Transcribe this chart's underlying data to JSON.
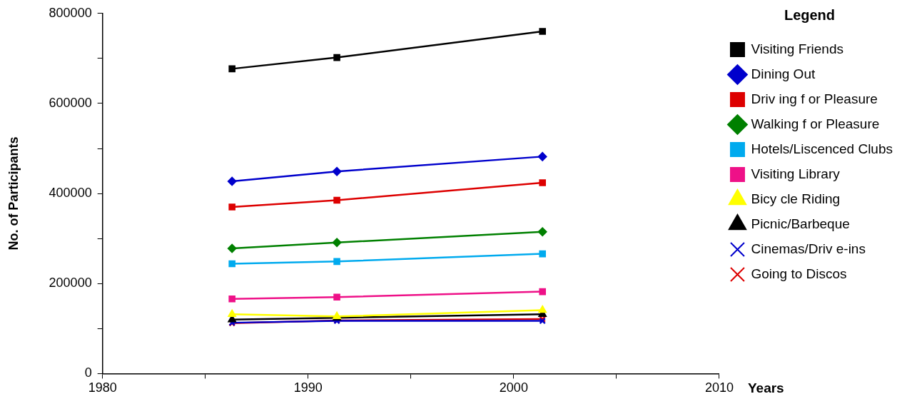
{
  "chart_data": {
    "type": "line",
    "xlabel": "Years",
    "ylabel": "No. of Participants",
    "legend_title": "Legend",
    "legend": "right",
    "grid": false,
    "x": [
      1986.3,
      1991.4,
      2001.4
    ],
    "xlim": [
      1980,
      2010
    ],
    "xticks": [
      1980,
      {
        "value": 1985,
        "label": null
      },
      1990,
      {
        "value": 1995,
        "label": null
      },
      2000,
      {
        "value": 2005,
        "label": null
      },
      2010
    ],
    "ylim": [
      0,
      800000
    ],
    "yticks": [
      0,
      {
        "value": 100000,
        "label": null
      },
      200000,
      {
        "value": 300000,
        "label": null
      },
      400000,
      {
        "value": 500000,
        "label": null
      },
      600000,
      {
        "value": 700000,
        "label": null
      },
      800000
    ],
    "series": [
      {
        "name": "Visiting Friends",
        "color": "#000000",
        "marker": "square",
        "values": [
          677000,
          702000,
          760000
        ]
      },
      {
        "name": "Dining Out",
        "color": "#0000cc",
        "marker": "diamond",
        "values": [
          427000,
          449000,
          482000
        ]
      },
      {
        "name": "Driv ing f or Pleasure",
        "color": "#dd0000",
        "marker": "square",
        "values": [
          370000,
          385000,
          424000
        ]
      },
      {
        "name": "Walking f or Pleasure",
        "color": "#008000",
        "marker": "diamond",
        "values": [
          278000,
          291000,
          315000
        ]
      },
      {
        "name": "Hotels/Liscenced Clubs",
        "color": "#00aaee",
        "marker": "square",
        "values": [
          244000,
          249000,
          266000
        ]
      },
      {
        "name": "Visiting Library",
        "color": "#ee1188",
        "marker": "square",
        "values": [
          166000,
          170000,
          182000
        ]
      },
      {
        "name": "Bicy cle Riding",
        "color": "#ffff00",
        "marker": "triangle",
        "values": [
          132000,
          127000,
          141000
        ]
      },
      {
        "name": "Picnic/Barbeque",
        "color": "#000000",
        "marker": "triangle",
        "values": [
          120000,
          124000,
          132000
        ]
      },
      {
        "name": "Cinemas/Driv e-ins",
        "color": "#0000cc",
        "marker": "cross",
        "values": [
          113000,
          117000,
          117000
        ]
      },
      {
        "name": "Going to Discos",
        "color": "#dd0000",
        "marker": "cross",
        "values": [
          112000,
          118000,
          121000
        ]
      }
    ]
  }
}
